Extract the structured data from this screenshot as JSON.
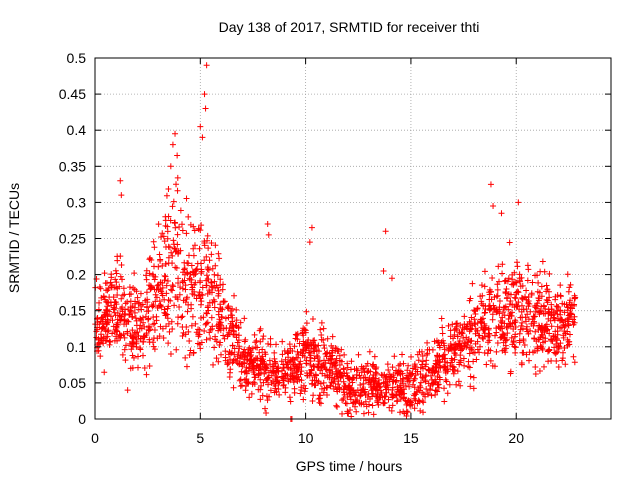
{
  "chart_data": {
    "type": "scatter",
    "title": "Day 138 of 2017, SRMTID for receiver thti",
    "xlabel": "GPS time / hours",
    "ylabel": "SRMTID / TECUs",
    "xlim": [
      0,
      24.5
    ],
    "ylim": [
      0,
      0.5
    ],
    "xticks": [
      0,
      5,
      10,
      15,
      20
    ],
    "xtick_labels": [
      "0",
      "5",
      "10",
      "15",
      "20"
    ],
    "yticks": [
      0,
      0.05,
      0.1,
      0.15,
      0.2,
      0.25,
      0.3,
      0.35,
      0.4,
      0.45,
      0.5
    ],
    "ytick_labels": [
      "0",
      "0.05",
      "0.1",
      "0.15",
      "0.2",
      "0.25",
      "0.3",
      "0.35",
      "0.4",
      "0.45",
      "0.5"
    ],
    "grid": true,
    "marker": "plus",
    "series": [
      {
        "name": "SRMTID",
        "color": "#ff0000",
        "envelope": {
          "description": "approximate typical level (center) and spread of the dense point cloud versus hour",
          "hours": [
            0,
            1,
            2,
            3,
            3.8,
            4.5,
            5.3,
            6,
            7,
            8,
            9,
            10,
            11,
            12,
            13,
            14,
            15,
            16,
            17,
            18,
            19,
            20,
            21,
            22,
            22.8
          ],
          "center": [
            0.13,
            0.15,
            0.13,
            0.17,
            0.22,
            0.17,
            0.19,
            0.14,
            0.08,
            0.07,
            0.06,
            0.09,
            0.07,
            0.045,
            0.05,
            0.045,
            0.045,
            0.07,
            0.09,
            0.12,
            0.15,
            0.15,
            0.14,
            0.13,
            0.14
          ],
          "spread": [
            0.03,
            0.035,
            0.035,
            0.045,
            0.06,
            0.05,
            0.05,
            0.04,
            0.025,
            0.025,
            0.02,
            0.03,
            0.025,
            0.02,
            0.02,
            0.02,
            0.02,
            0.025,
            0.025,
            0.035,
            0.035,
            0.04,
            0.035,
            0.03,
            0.03
          ]
        },
        "notable_points": [
          {
            "x": 5.3,
            "y": 0.49
          },
          {
            "x": 5.2,
            "y": 0.45
          },
          {
            "x": 5.25,
            "y": 0.43
          },
          {
            "x": 5.0,
            "y": 0.405
          },
          {
            "x": 5.1,
            "y": 0.39
          },
          {
            "x": 3.8,
            "y": 0.395
          },
          {
            "x": 3.7,
            "y": 0.38
          },
          {
            "x": 3.9,
            "y": 0.365
          },
          {
            "x": 3.6,
            "y": 0.35
          },
          {
            "x": 1.2,
            "y": 0.33
          },
          {
            "x": 1.25,
            "y": 0.31
          },
          {
            "x": 18.8,
            "y": 0.325
          },
          {
            "x": 20.1,
            "y": 0.3
          },
          {
            "x": 18.9,
            "y": 0.295
          },
          {
            "x": 19.3,
            "y": 0.285
          },
          {
            "x": 8.2,
            "y": 0.27
          },
          {
            "x": 8.25,
            "y": 0.255
          },
          {
            "x": 10.3,
            "y": 0.265
          },
          {
            "x": 10.2,
            "y": 0.245
          },
          {
            "x": 13.8,
            "y": 0.26
          },
          {
            "x": 13.7,
            "y": 0.205
          },
          {
            "x": 14.1,
            "y": 0.195
          },
          {
            "x": 1.55,
            "y": 0.04
          },
          {
            "x": 9.3,
            "y": 0.0
          },
          {
            "x": 9.35,
            "y": 0.0
          }
        ]
      }
    ]
  }
}
